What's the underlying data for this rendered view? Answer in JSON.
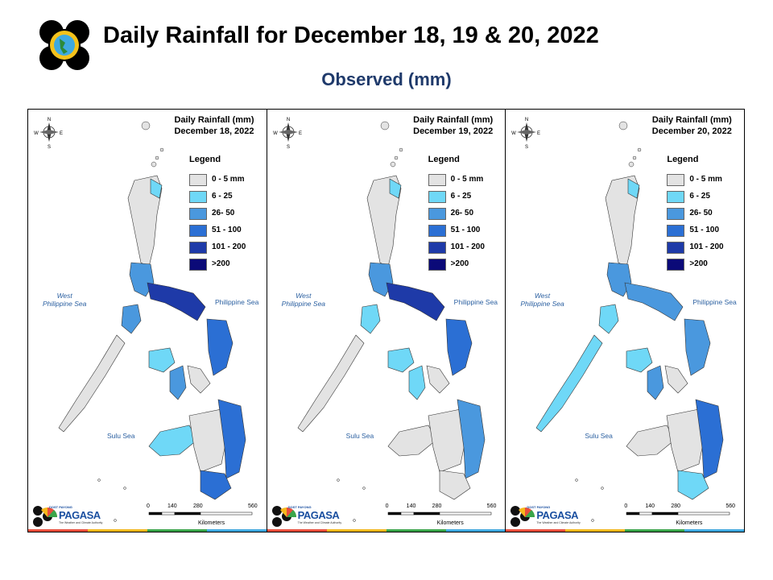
{
  "header": {
    "title": "Daily Rainfall for December 18, 19 & 20, 2022",
    "subtitle": "Observed (mm)"
  },
  "legend": {
    "title": "Legend",
    "items": [
      {
        "label": "0 - 5 mm",
        "color": "#e3e3e3"
      },
      {
        "label": "6 - 25",
        "color": "#6fd8f7"
      },
      {
        "label": "26- 50",
        "color": "#4a98de"
      },
      {
        "label": "51 - 100",
        "color": "#2b6fd4"
      },
      {
        "label": "101 - 200",
        "color": "#1e3aa8"
      },
      {
        "label": ">200",
        "color": "#0b0a78"
      }
    ]
  },
  "map_labels": {
    "west_sea": "West\nPhilippine Sea",
    "ph_sea": "Philippine Sea",
    "sulu_sea": "Sulu Sea",
    "compass_n": "N",
    "compass_s": "S",
    "compass_e": "E",
    "compass_w": "W",
    "scale_ticks": [
      "0",
      "140",
      "280",
      "560"
    ],
    "scale_unit": "Kilometers"
  },
  "branding": {
    "small": "DOST PAYONG",
    "word": "PAGASA",
    "tag": "The Weather and Climate Authority"
  },
  "panels": [
    {
      "title_line1": "Daily Rainfall (mm)",
      "title_line2": "December 18, 2022"
    },
    {
      "title_line1": "Daily Rainfall (mm)",
      "title_line2": "December 19, 2022"
    },
    {
      "title_line1": "Daily Rainfall (mm)",
      "title_line2": "December 20, 2022"
    }
  ]
}
